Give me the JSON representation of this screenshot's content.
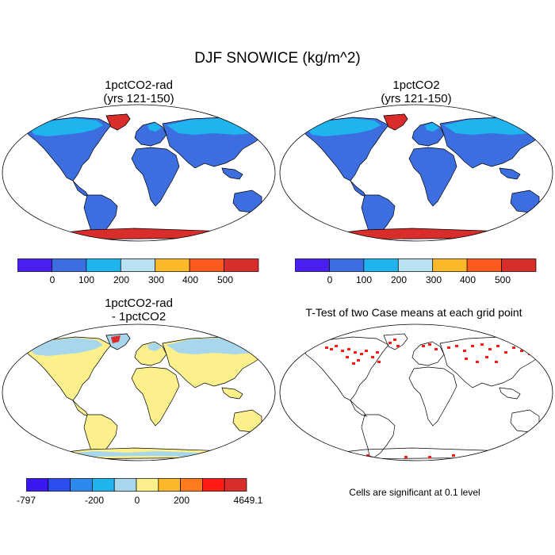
{
  "figure_title": "DJF SNOWICE (kg/m^2)",
  "panels": [
    {
      "title_line1": "1pctCO2-rad",
      "title_line2": "(yrs 121-150)"
    },
    {
      "title_line1": "1pctCO2",
      "title_line2": "(yrs 121-150)"
    },
    {
      "title_line1": "1pctCO2-rad",
      "title_line2": "- 1pctCO2"
    },
    {
      "title_line1": "T-Test of two Case means at each grid point",
      "title_line2": ""
    }
  ],
  "colorbar_abs": {
    "colors": [
      "#4a1ff0",
      "#3c6ee0",
      "#1fb4ee",
      "#b8e1f1",
      "#fbb82a",
      "#ff5a1e",
      "#d92d2c"
    ],
    "tick_labels": [
      "0",
      "100",
      "200",
      "300",
      "400",
      "500"
    ]
  },
  "colorbar_diff": {
    "colors": [
      "#3a18f0",
      "#2c4ef0",
      "#2c8aec",
      "#20b4ee",
      "#a8d6ec",
      "#fbf08c",
      "#fbb82a",
      "#ff7a1e",
      "#ff1a14",
      "#d92d2c"
    ],
    "tick_labels": [
      "-797",
      "-200",
      "0",
      "200",
      "4649.1"
    ]
  },
  "significance_note": "Cells are significant at 0.1 level",
  "colors": {
    "land_base": "#3c6ee0",
    "snow_light": "#1fb4ee",
    "antarctica": "#d92d2c",
    "diff_land": "#fbf08c",
    "diff_snow": "#a8d6ec",
    "significant": "#ff1a14"
  }
}
